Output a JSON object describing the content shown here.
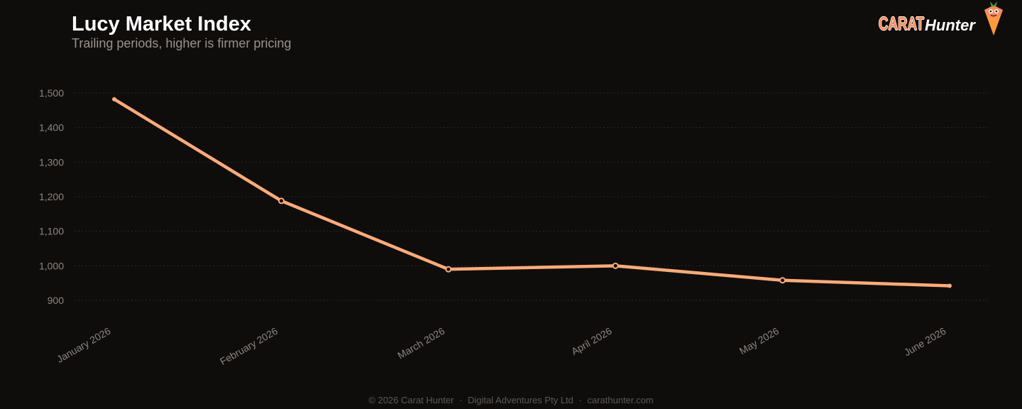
{
  "header": {
    "title": "Lucy Market Index",
    "subtitle": "Trailing periods, higher is firmer pricing"
  },
  "logo": {
    "carat": "CARAT",
    "hunter": "Hunter",
    "mascot_icon": "carrot-mascot-icon"
  },
  "chart_data": {
    "type": "line",
    "categories": [
      "January 2026",
      "February 2026",
      "March 2026",
      "April 2026",
      "May 2026",
      "June 2026"
    ],
    "series": [
      {
        "values": [
          1482,
          1188,
          990,
          1000,
          958,
          942
        ]
      }
    ],
    "y_ticks": [
      "900",
      "1,000",
      "1,100",
      "1,200",
      "1,300",
      "1,400",
      "1,500"
    ],
    "ylim": [
      900,
      1500
    ],
    "grid": true,
    "line_color": "#ffab7a",
    "marker_fill": "#0f0d0c"
  },
  "footer": {
    "copyright": "© 2026 Carat Hunter",
    "company": "Digital Adventures Pty Ltd",
    "site": "carathunter.com",
    "separator": "·"
  }
}
